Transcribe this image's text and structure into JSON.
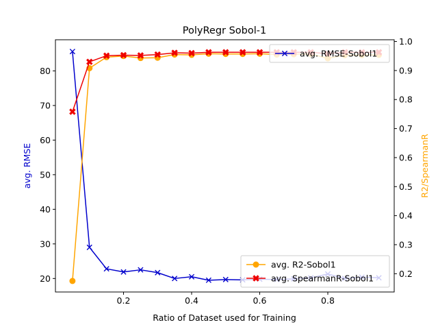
{
  "chart_data": {
    "type": "line",
    "title": "PolyRegr Sobol-1",
    "xlabel": "Ratio of Dataset used for Training",
    "ylabel_left": "avg. RMSE",
    "ylabel_right": "R2/SpearmanR",
    "xlim": [
      0.0,
      0.995
    ],
    "ylim_left": [
      16.1,
      89.0
    ],
    "ylim_right": [
      0.137,
      1.006
    ],
    "x_ticks": [
      0.2,
      0.4,
      0.6,
      0.8
    ],
    "x_tick_labels": [
      "0.2",
      "0.4",
      "0.6",
      "0.8"
    ],
    "y_left_ticks": [
      20,
      30,
      40,
      50,
      60,
      70,
      80
    ],
    "y_left_tick_labels": [
      "20",
      "30",
      "40",
      "50",
      "60",
      "70",
      "80"
    ],
    "y_right_ticks": [
      0.2,
      0.3,
      0.4,
      0.5,
      0.6,
      0.7,
      0.8,
      0.9,
      1.0
    ],
    "y_right_tick_labels": [
      "0.2",
      "0.3",
      "0.4",
      "0.5",
      "0.6",
      "0.7",
      "0.8",
      "0.9",
      "1.0"
    ],
    "x": [
      0.05,
      0.1,
      0.15,
      0.2,
      0.25,
      0.3,
      0.35,
      0.4,
      0.45,
      0.5,
      0.55,
      0.6,
      0.65,
      0.7,
      0.75,
      0.8,
      0.85,
      0.9,
      0.95
    ],
    "grid": false,
    "series": [
      {
        "name": "avg. RMSE-Sobol1",
        "axis": "left",
        "color": "#0000cc",
        "marker": "x",
        "legend": "top-right",
        "values": [
          85.6,
          29.0,
          22.8,
          21.9,
          22.5,
          21.7,
          20.0,
          20.5,
          19.5,
          19.7,
          19.6,
          19.8,
          19.7,
          19.9,
          20.2,
          21.3,
          20.0,
          20.4,
          20.2
        ]
      },
      {
        "name": "avg. R2-Sobol1",
        "axis": "right",
        "color": "#ffa500",
        "marker": "circle",
        "legend": "bottom-right",
        "values": [
          0.175,
          0.908,
          0.946,
          0.95,
          0.943,
          0.944,
          0.955,
          0.954,
          0.958,
          0.957,
          0.957,
          0.958,
          0.955,
          0.956,
          0.957,
          0.942,
          0.953,
          0.953,
          0.954
        ]
      },
      {
        "name": "avg. SpearmanR-Sobol1",
        "axis": "right",
        "color": "#ee0000",
        "marker": "X",
        "legend": "bottom-right",
        "values": [
          0.758,
          0.93,
          0.951,
          0.953,
          0.952,
          0.955,
          0.961,
          0.96,
          0.963,
          0.963,
          0.963,
          0.963,
          0.963,
          0.963,
          0.963,
          0.958,
          0.963,
          0.963,
          0.963
        ]
      }
    ]
  }
}
